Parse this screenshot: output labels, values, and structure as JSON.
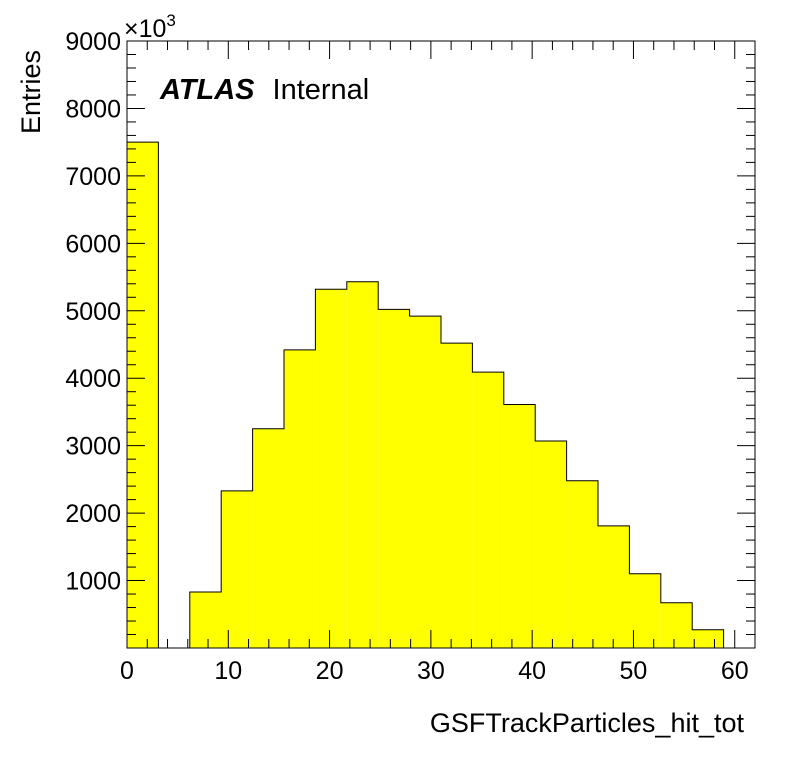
{
  "chart_data": {
    "type": "bar",
    "histogram": true,
    "xlabel": "GSFTrackParticles_hit_tot",
    "ylabel": "Entries",
    "y_multiplier": "×10",
    "y_multiplier_exp": "3",
    "xlim": [
      0,
      62
    ],
    "ylim": [
      0,
      9000
    ],
    "x_ticks": [
      0,
      10,
      20,
      30,
      40,
      50,
      60
    ],
    "y_ticks": [
      1000,
      2000,
      3000,
      4000,
      5000,
      6000,
      7000,
      8000,
      9000
    ],
    "bin_edges": [
      0,
      3.1,
      6.2,
      9.3,
      12.4,
      15.5,
      18.6,
      21.7,
      24.8,
      27.9,
      31.0,
      34.1,
      37.2,
      40.3,
      43.4,
      46.5,
      49.6,
      52.7,
      55.8,
      58.9
    ],
    "values": [
      7500,
      0,
      830,
      2330,
      3250,
      4420,
      5320,
      5430,
      5020,
      4920,
      4520,
      4090,
      3610,
      3070,
      2480,
      1810,
      1100,
      670,
      270
    ],
    "fill_color": "#ffff00",
    "line_color": "#000000",
    "grid": false,
    "legend": "none",
    "annotations": [
      {
        "bold_italic": "ATLAS",
        "regular": "Internal"
      }
    ]
  }
}
